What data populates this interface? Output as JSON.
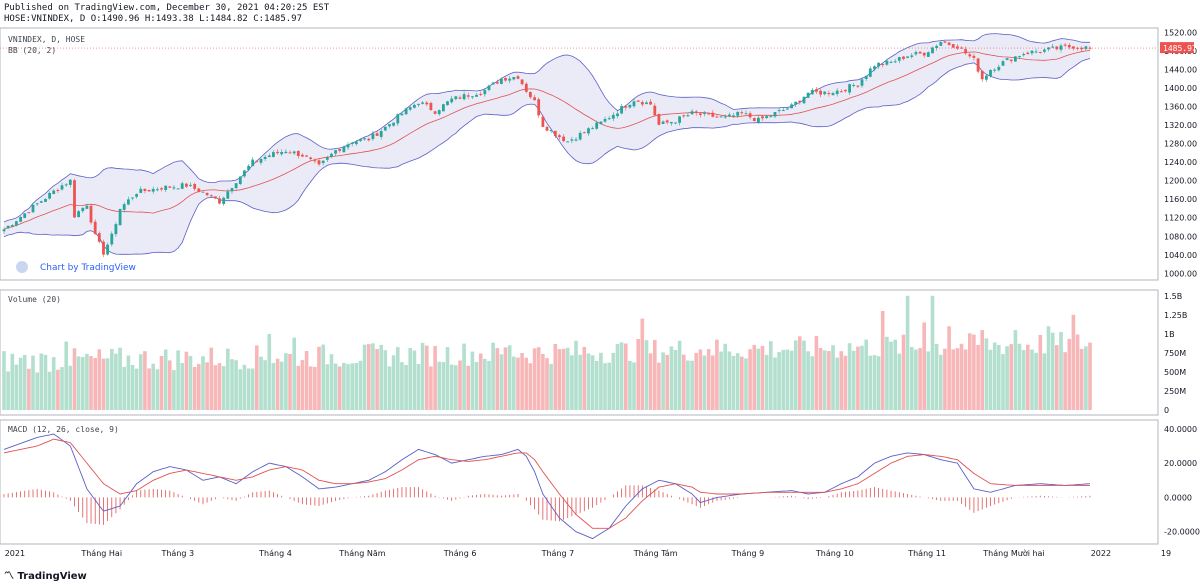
{
  "header": {
    "published": "Published on TradingView.com, December 30, 2021 04:20:25 EST",
    "ohlc": "HOSE:VNINDEX, D O:1490.96 H:1493.38 L:1484.82 C:1485.97"
  },
  "footer": {
    "brand": "TradingView"
  },
  "watermark": "Chart by TradingView",
  "colors": {
    "up": "#26a69a",
    "down": "#ef5350",
    "bb_band": "#5b5fc7",
    "bb_fill": "#e6e6f5",
    "basis": "#e05252",
    "vol_up": "#b2dfce",
    "vol_down": "#f7b6b8",
    "macd": "#5b5fc7",
    "signal": "#e05252"
  },
  "chart_data": [
    {
      "type": "candlestick",
      "title": "VNINDEX, D, HOSE",
      "indicator_label": "BB (20, 2)",
      "ylim": [
        990,
        1525
      ],
      "y_ticks": [
        "1520.00",
        "1480.00",
        "1440.00",
        "1400.00",
        "1360.00",
        "1320.00",
        "1280.00",
        "1240.00",
        "1200.00",
        "1160.00",
        "1120.00",
        "1080.00",
        "1040.00",
        "1000.00"
      ],
      "last_price": "1485.97",
      "last_close": 1485.97,
      "close_anchors": [
        [
          0,
          1095
        ],
        [
          8,
          1150
        ],
        [
          14,
          1190
        ],
        [
          16,
          1200
        ],
        [
          17,
          1125
        ],
        [
          20,
          1150
        ],
        [
          22,
          1080
        ],
        [
          24,
          1045
        ],
        [
          26,
          1080
        ],
        [
          28,
          1140
        ],
        [
          32,
          1175
        ],
        [
          38,
          1185
        ],
        [
          44,
          1190
        ],
        [
          48,
          1175
        ],
        [
          52,
          1155
        ],
        [
          56,
          1200
        ],
        [
          60,
          1240
        ],
        [
          64,
          1255
        ],
        [
          68,
          1265
        ],
        [
          72,
          1255
        ],
        [
          76,
          1230
        ],
        [
          80,
          1265
        ],
        [
          84,
          1285
        ],
        [
          88,
          1290
        ],
        [
          92,
          1315
        ],
        [
          96,
          1345
        ],
        [
          100,
          1370
        ],
        [
          104,
          1350
        ],
        [
          108,
          1375
        ],
        [
          112,
          1385
        ],
        [
          116,
          1395
        ],
        [
          120,
          1420
        ],
        [
          124,
          1425
        ],
        [
          126,
          1395
        ],
        [
          128,
          1370
        ],
        [
          130,
          1320
        ],
        [
          134,
          1295
        ],
        [
          136,
          1285
        ],
        [
          140,
          1305
        ],
        [
          144,
          1325
        ],
        [
          148,
          1350
        ],
        [
          152,
          1375
        ],
        [
          156,
          1365
        ],
        [
          158,
          1320
        ],
        [
          162,
          1330
        ],
        [
          166,
          1345
        ],
        [
          170,
          1340
        ],
        [
          174,
          1335
        ],
        [
          178,
          1345
        ],
        [
          182,
          1330
        ],
        [
          186,
          1345
        ],
        [
          190,
          1360
        ],
        [
          194,
          1390
        ],
        [
          198,
          1390
        ],
        [
          202,
          1395
        ],
        [
          206,
          1410
        ],
        [
          210,
          1450
        ],
        [
          214,
          1455
        ],
        [
          218,
          1470
        ],
        [
          222,
          1475
        ],
        [
          226,
          1500
        ],
        [
          230,
          1490
        ],
        [
          234,
          1460
        ],
        [
          236,
          1420
        ],
        [
          238,
          1440
        ],
        [
          242,
          1460
        ],
        [
          246,
          1475
        ],
        [
          250,
          1480
        ],
        [
          254,
          1485
        ],
        [
          258,
          1490
        ],
        [
          262,
          1485.97
        ]
      ]
    },
    {
      "type": "bar",
      "title": "Volume (20)",
      "ylim": [
        0,
        1550000000
      ],
      "y_ticks": [
        "1.5B",
        "1.25B",
        "1B",
        "750M",
        "500M",
        "250M",
        "0"
      ],
      "y_tick_values": [
        1500000000,
        1250000000,
        1000000000,
        750000000,
        500000000,
        250000000,
        0
      ],
      "spike_anchors": [
        [
          15,
          900000000
        ],
        [
          64,
          1000000000
        ],
        [
          70,
          950000000
        ],
        [
          122,
          850000000
        ],
        [
          134,
          800000000
        ],
        [
          154,
          1200000000
        ],
        [
          170,
          800000000
        ],
        [
          200,
          850000000
        ],
        [
          212,
          1300000000
        ],
        [
          218,
          1500000000
        ],
        [
          222,
          1150000000
        ],
        [
          224,
          1500000000
        ],
        [
          228,
          1100000000
        ],
        [
          236,
          1050000000
        ],
        [
          244,
          1050000000
        ],
        [
          252,
          1100000000
        ],
        [
          258,
          1250000000
        ]
      ]
    },
    {
      "type": "line",
      "title": "MACD (12, 26, close, 9)",
      "ylim": [
        -26,
        44
      ],
      "y_ticks": [
        "40.0000",
        "20.0000",
        "0.0000",
        "-20.0000"
      ],
      "y_tick_values": [
        40,
        20,
        0,
        -20
      ],
      "series": [
        {
          "anchors": [
            [
              0,
              28
            ],
            [
              8,
              35
            ],
            [
              12,
              37
            ],
            [
              16,
              30
            ],
            [
              20,
              5
            ],
            [
              24,
              -8
            ],
            [
              28,
              -5
            ],
            [
              32,
              8
            ],
            [
              36,
              15
            ],
            [
              40,
              18
            ],
            [
              44,
              16
            ],
            [
              48,
              10
            ],
            [
              52,
              12
            ],
            [
              56,
              8
            ],
            [
              60,
              15
            ],
            [
              64,
              20
            ],
            [
              68,
              18
            ],
            [
              72,
              12
            ],
            [
              76,
              5
            ],
            [
              80,
              6
            ],
            [
              84,
              8
            ],
            [
              88,
              10
            ],
            [
              92,
              15
            ],
            [
              96,
              22
            ],
            [
              100,
              28
            ],
            [
              104,
              25
            ],
            [
              108,
              20
            ],
            [
              112,
              22
            ],
            [
              116,
              24
            ],
            [
              120,
              25
            ],
            [
              124,
              28
            ],
            [
              126,
              24
            ],
            [
              128,
              15
            ],
            [
              130,
              2
            ],
            [
              134,
              -12
            ],
            [
              138,
              -20
            ],
            [
              142,
              -24
            ],
            [
              146,
              -18
            ],
            [
              150,
              -5
            ],
            [
              154,
              5
            ],
            [
              158,
              10
            ],
            [
              162,
              8
            ],
            [
              166,
              2
            ],
            [
              168,
              -3
            ],
            [
              172,
              0
            ],
            [
              178,
              2
            ],
            [
              184,
              3
            ],
            [
              190,
              4
            ],
            [
              194,
              2
            ],
            [
              198,
              3
            ],
            [
              202,
              8
            ],
            [
              206,
              12
            ],
            [
              210,
              20
            ],
            [
              214,
              24
            ],
            [
              218,
              26
            ],
            [
              222,
              25
            ],
            [
              226,
              22
            ],
            [
              230,
              20
            ],
            [
              234,
              5
            ],
            [
              238,
              3
            ],
            [
              244,
              7
            ],
            [
              250,
              8
            ],
            [
              256,
              7
            ],
            [
              262,
              8
            ]
          ]
        },
        {
          "anchors": [
            [
              0,
              26
            ],
            [
              8,
              30
            ],
            [
              12,
              34
            ],
            [
              16,
              32
            ],
            [
              20,
              20
            ],
            [
              24,
              8
            ],
            [
              28,
              2
            ],
            [
              32,
              4
            ],
            [
              36,
              10
            ],
            [
              40,
              14
            ],
            [
              44,
              16
            ],
            [
              48,
              14
            ],
            [
              52,
              12
            ],
            [
              56,
              10
            ],
            [
              60,
              12
            ],
            [
              64,
              16
            ],
            [
              68,
              18
            ],
            [
              72,
              16
            ],
            [
              76,
              10
            ],
            [
              80,
              8
            ],
            [
              84,
              8
            ],
            [
              88,
              9
            ],
            [
              92,
              11
            ],
            [
              96,
              16
            ],
            [
              100,
              22
            ],
            [
              104,
              24
            ],
            [
              108,
              22
            ],
            [
              112,
              21
            ],
            [
              116,
              22
            ],
            [
              120,
              24
            ],
            [
              124,
              26
            ],
            [
              126,
              26
            ],
            [
              128,
              22
            ],
            [
              130,
              15
            ],
            [
              134,
              2
            ],
            [
              138,
              -10
            ],
            [
              142,
              -18
            ],
            [
              146,
              -18
            ],
            [
              150,
              -12
            ],
            [
              154,
              -2
            ],
            [
              158,
              6
            ],
            [
              162,
              8
            ],
            [
              166,
              6
            ],
            [
              168,
              3
            ],
            [
              172,
              2
            ],
            [
              178,
              2
            ],
            [
              184,
              3
            ],
            [
              190,
              3
            ],
            [
              194,
              3
            ],
            [
              198,
              3
            ],
            [
              202,
              5
            ],
            [
              206,
              8
            ],
            [
              210,
              14
            ],
            [
              214,
              20
            ],
            [
              218,
              24
            ],
            [
              222,
              25
            ],
            [
              226,
              24
            ],
            [
              230,
              22
            ],
            [
              234,
              14
            ],
            [
              238,
              8
            ],
            [
              244,
              7
            ],
            [
              250,
              7
            ],
            [
              256,
              7
            ],
            [
              262,
              7
            ]
          ]
        }
      ]
    }
  ],
  "x_labels": [
    "2021",
    "Tháng Hai",
    "Tháng 3",
    "Tháng 4",
    "Tháng Năm",
    "Tháng 6",
    "Tháng 7",
    "Tháng Tám",
    "Tháng 9",
    "Tháng 10",
    "Tháng 11",
    "Tháng Mười hai",
    "2022",
    "19"
  ],
  "x_label_fractions": [
    0.01,
    0.09,
    0.16,
    0.25,
    0.33,
    0.42,
    0.51,
    0.6,
    0.685,
    0.765,
    0.85,
    0.93,
    1.01,
    1.07
  ]
}
